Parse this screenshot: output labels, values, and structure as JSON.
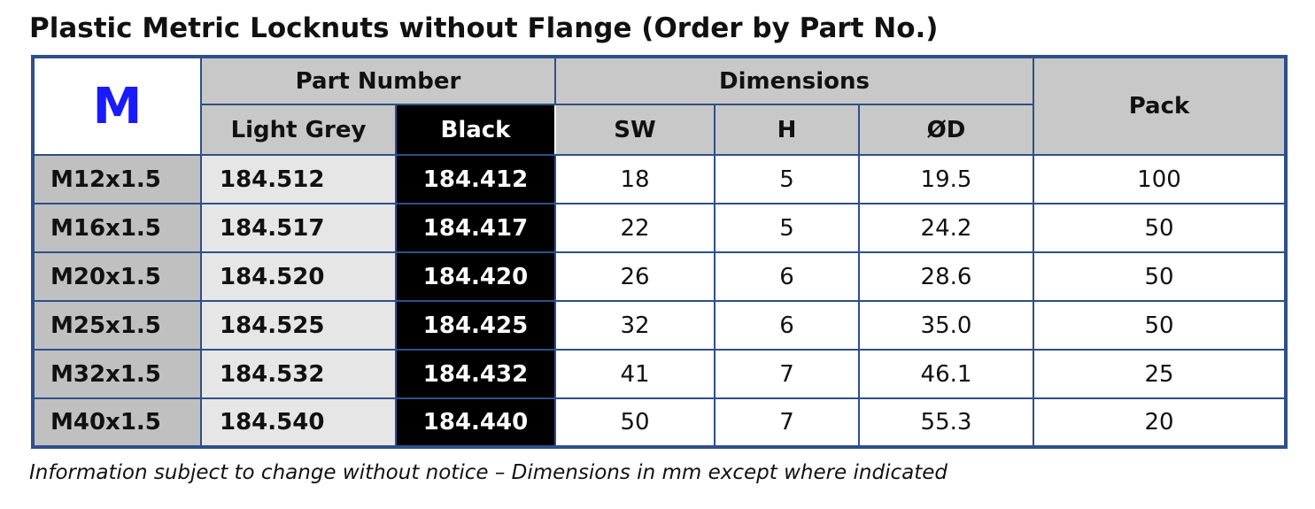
{
  "title": "Plastic Metric Locknuts without Flange (Order by Part No.)",
  "table": {
    "corner": "M",
    "groups": [
      "Part Number",
      "Dimensions"
    ],
    "pack": "Pack",
    "subheaders": [
      "Light Grey",
      "Black",
      "SW",
      "H",
      "ØD"
    ],
    "rows": [
      [
        "M12x1.5",
        "184.512",
        "184.412",
        "18",
        "5",
        "19.5",
        "100"
      ],
      [
        "M16x1.5",
        "184.517",
        "184.417",
        "22",
        "5",
        "24.2",
        "50"
      ],
      [
        "M20x1.5",
        "184.520",
        "184.420",
        "26",
        "6",
        "28.6",
        "50"
      ],
      [
        "M25x1.5",
        "184.525",
        "184.425",
        "32",
        "6",
        "35.0",
        "50"
      ],
      [
        "M32x1.5",
        "184.532",
        "184.432",
        "41",
        "7",
        "46.1",
        "25"
      ],
      [
        "M40x1.5",
        "184.540",
        "184.440",
        "50",
        "7",
        "55.3",
        "20"
      ]
    ]
  },
  "footer": "Information subject to change without notice – Dimensions in mm except where indicated"
}
